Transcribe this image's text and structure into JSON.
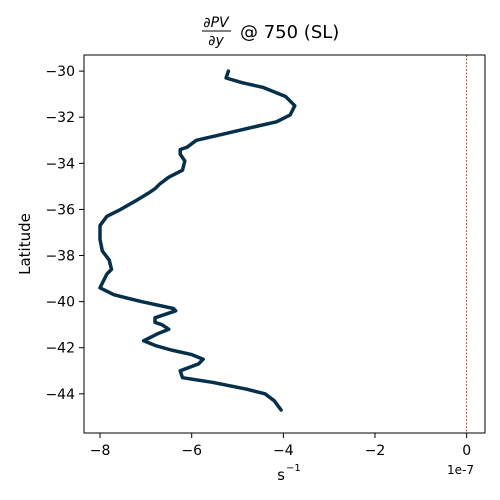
{
  "chart_data": {
    "type": "line",
    "title_math": "∂PV/∂y",
    "title_num": "∂PV",
    "title_den": "∂y",
    "title_text": "@ 750 (SL)",
    "xlabel_base": "s",
    "xlabel_exp": "−1",
    "ylabel": "Latitude",
    "offset_text": "1e-7",
    "xlim": [
      -8.35,
      0.4
    ],
    "ylim": [
      -45.7,
      -29.3
    ],
    "xticks": [
      {
        "value": -8,
        "label": "−8"
      },
      {
        "value": -6,
        "label": "−6"
      },
      {
        "value": -4,
        "label": "−4"
      },
      {
        "value": -2,
        "label": "−2"
      },
      {
        "value": 0,
        "label": "0"
      }
    ],
    "yticks": [
      {
        "value": -30,
        "label": "−30"
      },
      {
        "value": -32,
        "label": "−32"
      },
      {
        "value": -34,
        "label": "−34"
      },
      {
        "value": -36,
        "label": "−36"
      },
      {
        "value": -38,
        "label": "−38"
      },
      {
        "value": -40,
        "label": "−40"
      },
      {
        "value": -42,
        "label": "−42"
      },
      {
        "value": -44,
        "label": "−44"
      }
    ],
    "reference_line_x": 0,
    "line_color": "#06304a",
    "reference_line_color": "#8b2a2a",
    "series": [
      {
        "x": [
          -5.2,
          -5.25,
          -4.9,
          -4.45,
          -3.95,
          -3.75,
          -3.85,
          -4.15,
          -4.6,
          -5.25,
          -5.9,
          -6.1,
          -6.25,
          -6.25,
          -6.15,
          -6.2,
          -6.5,
          -6.7,
          -6.8,
          -6.95,
          -7.2,
          -7.55,
          -7.85,
          -8.0,
          -8.0,
          -7.95,
          -7.8,
          -7.75,
          -7.85,
          -8.0,
          -7.7,
          -7.1,
          -6.4,
          -6.35,
          -6.8,
          -6.8,
          -6.65,
          -6.5,
          -6.75,
          -7.05,
          -6.8,
          -6.45,
          -6.0,
          -5.75,
          -5.85,
          -6.25,
          -6.2,
          -5.55,
          -4.8,
          -4.4,
          -4.2,
          -4.05
        ],
        "y": [
          -30.0,
          -30.3,
          -30.5,
          -30.7,
          -31.1,
          -31.5,
          -31.9,
          -32.2,
          -32.4,
          -32.7,
          -33.0,
          -33.3,
          -33.4,
          -33.6,
          -33.9,
          -34.3,
          -34.6,
          -34.9,
          -35.1,
          -35.3,
          -35.6,
          -36.0,
          -36.3,
          -36.7,
          -37.3,
          -37.8,
          -38.2,
          -38.6,
          -38.8,
          -39.4,
          -39.7,
          -40.0,
          -40.3,
          -40.4,
          -40.7,
          -40.9,
          -41.0,
          -41.2,
          -41.4,
          -41.7,
          -41.9,
          -42.1,
          -42.3,
          -42.5,
          -42.7,
          -43.0,
          -43.3,
          -43.5,
          -43.8,
          -44.0,
          -44.3,
          -44.7
        ]
      }
    ]
  }
}
